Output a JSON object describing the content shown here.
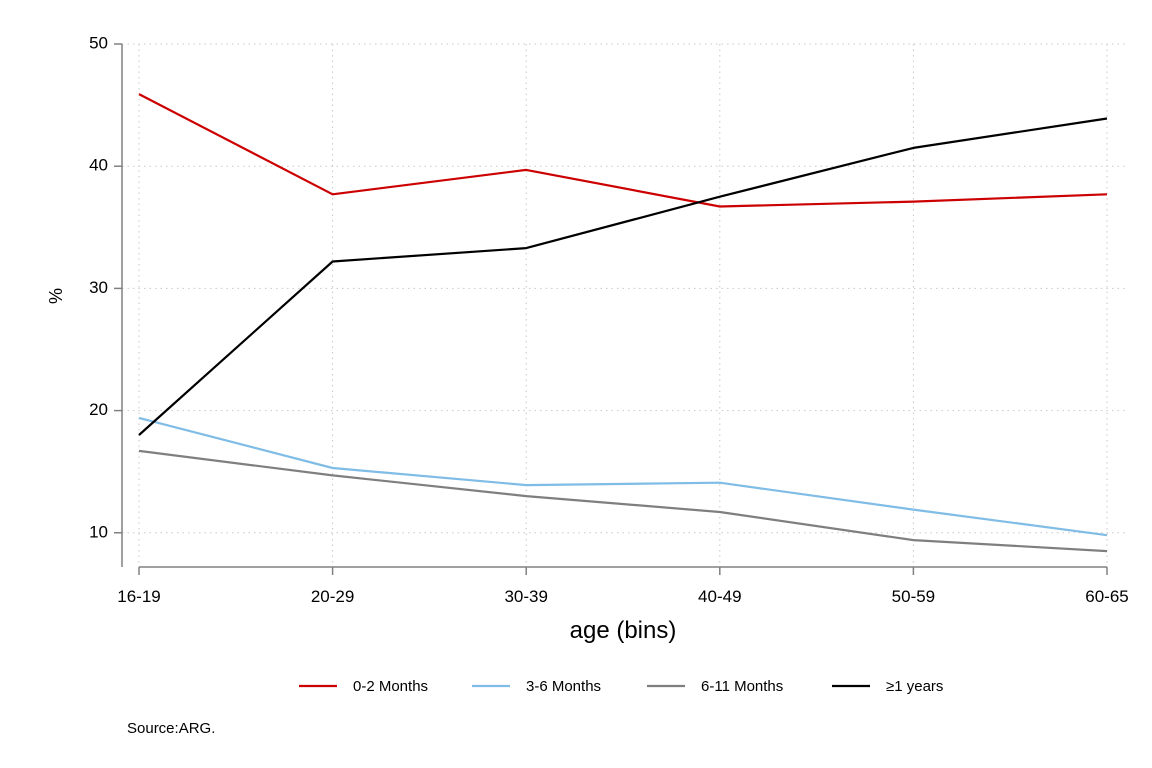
{
  "chart_data": {
    "type": "line",
    "title": "",
    "xlabel": "age (bins)",
    "ylabel": "%",
    "categories": [
      "16-19",
      "20-29",
      "30-39",
      "40-49",
      "50-59",
      "60-65"
    ],
    "ylim": [
      7.2,
      50
    ],
    "yticks": [
      10,
      20,
      30,
      40,
      50
    ],
    "grid": true,
    "legend_position": "bottom",
    "series": [
      {
        "name": "0-2 Months",
        "color": "#cc0000",
        "values": [
          45.9,
          37.7,
          39.7,
          36.7,
          37.1,
          37.7
        ]
      },
      {
        "name": "3-6 Months",
        "color": "#7fbce6",
        "values": [
          19.4,
          15.3,
          13.9,
          14.1,
          11.9,
          9.8
        ]
      },
      {
        "name": "6-11 Months",
        "color": "#7f7f7f",
        "values": [
          16.7,
          14.7,
          13.0,
          11.7,
          9.4,
          8.5
        ]
      },
      {
        "name": "≥1 years",
        "color": "#000000",
        "values": [
          18.0,
          32.2,
          33.3,
          37.5,
          41.5,
          43.9
        ]
      }
    ],
    "note": "Source:ARG."
  }
}
